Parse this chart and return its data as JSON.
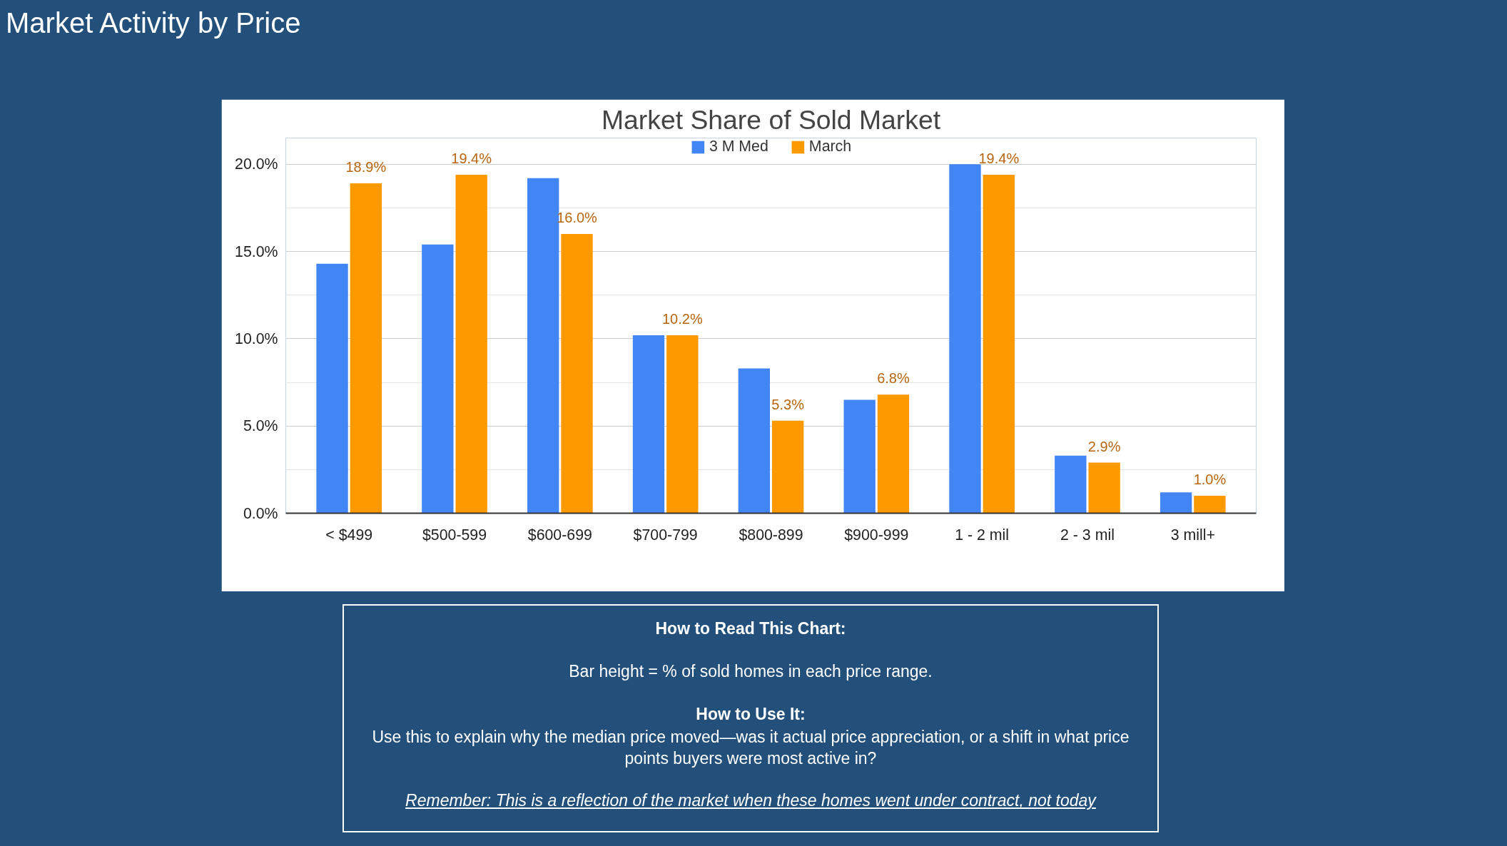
{
  "chart_data": {
    "type": "bar",
    "title": "Market Share of Sold Market",
    "subtitle": "Market Activity by Price",
    "categories": [
      "< $499",
      "$500-599",
      "$600-699",
      "$700-799",
      "$800-899",
      "$900-999",
      "1 - 2 mil",
      "2 - 3 mil",
      "3 mill+"
    ],
    "series": [
      {
        "name": "3 M Med",
        "color": "#4285f4",
        "values": [
          14.3,
          15.4,
          19.2,
          10.2,
          8.3,
          6.5,
          20.0,
          3.3,
          1.2
        ]
      },
      {
        "name": "March",
        "color": "#ff9900",
        "values": [
          18.9,
          19.4,
          16.0,
          10.2,
          5.3,
          6.8,
          19.4,
          2.9,
          1.0
        ],
        "value_labels": [
          "18.9%",
          "19.4%",
          "16.0%",
          "10.2%",
          "5.3%",
          "6.8%",
          "19.4%",
          "2.9%",
          "1.0%"
        ]
      }
    ],
    "ylim": [
      0,
      21.5
    ],
    "yticks": [
      {
        "value": 0,
        "label": "0.0%"
      },
      {
        "value": 5,
        "label": "5.0%"
      },
      {
        "value": 10,
        "label": "10.0%"
      },
      {
        "value": 15,
        "label": "15.0%"
      },
      {
        "value": 20,
        "label": "20.0%"
      }
    ],
    "grid": "y",
    "legend": "top",
    "annotations": [
      "How to Read This Chart:",
      "Bar height = % of sold homes in each price range.",
      "How to Use It:",
      "Use this to explain why the median price moved—was it actual price appreciation, or a shift in what price points buyers were most active in?",
      "Remember: This is a reflection of the market when these homes went under contract, not today"
    ]
  }
}
